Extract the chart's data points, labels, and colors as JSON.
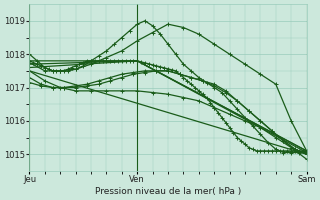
{
  "xlabel": "Pression niveau de la mer( hPa )",
  "ylim": [
    1014.5,
    1019.5
  ],
  "yticks": [
    1015,
    1016,
    1017,
    1018,
    1019
  ],
  "bg_color": "#cce8dc",
  "grid_color": "#99ccbb",
  "line_color": "#1a5c1a",
  "vline_color": "#1a5c1a",
  "markersize": 2.2,
  "linewidth": 0.9,
  "n_total": 73,
  "jeu_x": 0,
  "ven_x": 28,
  "sam_x": 72,
  "xtick_positions": [
    0,
    28,
    72
  ],
  "xtick_labels": [
    "Jeu",
    "Ven",
    "Sam"
  ],
  "series": [
    {
      "x": [
        0,
        1,
        2,
        3,
        4,
        5,
        6,
        7,
        8,
        9,
        10,
        11,
        12,
        13,
        14,
        15,
        16,
        17,
        18,
        19,
        20,
        21,
        22,
        23,
        24,
        25,
        26,
        27,
        28,
        29,
        30,
        31,
        32,
        33,
        34,
        35,
        36,
        37,
        38,
        39,
        40,
        41,
        42,
        43,
        44,
        45,
        46,
        47,
        48,
        49,
        50,
        51,
        52,
        53,
        54,
        55,
        56,
        57,
        58,
        59,
        60,
        61,
        62,
        63,
        64,
        65,
        66,
        67,
        68,
        69,
        70,
        71,
        72
      ],
      "y": [
        1017.8,
        1017.75,
        1017.7,
        1017.65,
        1017.6,
        1017.55,
        1017.5,
        1017.5,
        1017.5,
        1017.5,
        1017.55,
        1017.6,
        1017.65,
        1017.7,
        1017.75,
        1017.8,
        1017.8,
        1017.8,
        1017.8,
        1017.8,
        1017.8,
        1017.8,
        1017.8,
        1017.8,
        1017.8,
        1017.8,
        1017.8,
        1017.8,
        1017.8,
        1017.77,
        1017.74,
        1017.71,
        1017.68,
        1017.65,
        1017.62,
        1017.59,
        1017.56,
        1017.53,
        1017.5,
        1017.4,
        1017.3,
        1017.2,
        1017.1,
        1017.0,
        1016.9,
        1016.8,
        1016.7,
        1016.55,
        1016.4,
        1016.25,
        1016.1,
        1015.95,
        1015.8,
        1015.65,
        1015.5,
        1015.4,
        1015.3,
        1015.2,
        1015.15,
        1015.1,
        1015.1,
        1015.1,
        1015.1,
        1015.1,
        1015.1,
        1015.1,
        1015.1,
        1015.1,
        1015.1,
        1015.1,
        1015.1,
        1015.1,
        1015.1
      ],
      "has_markers": true
    },
    {
      "x": [
        0,
        4,
        8,
        12,
        16,
        20,
        24,
        28,
        32,
        36,
        40,
        44,
        48,
        52,
        56,
        60,
        64,
        68,
        72
      ],
      "y": [
        1017.75,
        1017.5,
        1017.5,
        1017.55,
        1017.7,
        1017.9,
        1018.1,
        1018.4,
        1018.65,
        1018.9,
        1018.8,
        1018.6,
        1018.3,
        1018.0,
        1017.7,
        1017.4,
        1017.1,
        1016.0,
        1015.1
      ],
      "has_markers": true
    },
    {
      "x": [
        0,
        28,
        72
      ],
      "y": [
        1017.8,
        1017.8,
        1015.1
      ],
      "has_markers": false
    },
    {
      "x": [
        0,
        28,
        72
      ],
      "y": [
        1017.7,
        1017.8,
        1015.1
      ],
      "has_markers": false
    },
    {
      "x": [
        0,
        28,
        72
      ],
      "y": [
        1017.6,
        1017.8,
        1015.05
      ],
      "has_markers": false
    },
    {
      "x": [
        0,
        72
      ],
      "y": [
        1017.5,
        1015.0
      ],
      "has_markers": false
    },
    {
      "x": [
        0,
        2,
        4,
        6,
        8,
        10,
        12,
        14,
        16,
        18,
        20,
        22,
        24,
        26,
        28,
        30,
        32,
        34,
        36,
        38,
        40,
        42,
        44,
        46,
        48,
        50,
        52,
        54,
        56,
        58,
        60,
        62,
        64,
        66,
        68,
        70,
        72
      ],
      "y": [
        1018.0,
        1017.8,
        1017.6,
        1017.5,
        1017.5,
        1017.5,
        1017.55,
        1017.65,
        1017.8,
        1017.95,
        1018.1,
        1018.3,
        1018.5,
        1018.7,
        1018.9,
        1019.0,
        1018.85,
        1018.6,
        1018.3,
        1018.0,
        1017.7,
        1017.5,
        1017.3,
        1017.15,
        1017.0,
        1016.85,
        1016.6,
        1016.35,
        1016.1,
        1015.85,
        1015.6,
        1015.35,
        1015.15,
        1015.05,
        1015.05,
        1015.05,
        1015.05
      ],
      "has_markers": true
    },
    {
      "x": [
        0,
        3,
        6,
        9,
        12,
        15,
        18,
        21,
        24,
        27,
        30,
        33,
        36,
        39,
        42,
        45,
        48,
        51,
        54,
        57,
        60,
        63,
        66,
        69,
        72
      ],
      "y": [
        1017.3,
        1017.1,
        1017.0,
        1017.0,
        1017.05,
        1017.1,
        1017.2,
        1017.3,
        1017.4,
        1017.45,
        1017.5,
        1017.5,
        1017.5,
        1017.4,
        1017.3,
        1017.2,
        1017.1,
        1016.9,
        1016.6,
        1016.3,
        1016.0,
        1015.7,
        1015.4,
        1015.15,
        1015.0
      ],
      "has_markers": true
    },
    {
      "x": [
        0,
        3,
        6,
        9,
        12,
        15,
        18,
        21,
        24,
        27,
        30,
        33,
        36,
        39,
        42,
        45,
        48,
        51,
        54,
        57,
        60,
        63,
        66,
        69,
        72
      ],
      "y": [
        1017.15,
        1017.05,
        1017.0,
        1017.0,
        1017.0,
        1017.05,
        1017.1,
        1017.2,
        1017.3,
        1017.4,
        1017.45,
        1017.5,
        1017.5,
        1017.4,
        1017.3,
        1017.2,
        1017.05,
        1016.85,
        1016.6,
        1016.3,
        1016.0,
        1015.7,
        1015.4,
        1015.15,
        1015.0
      ],
      "has_markers": true
    },
    {
      "x": [
        0,
        4,
        8,
        12,
        16,
        20,
        24,
        28,
        32,
        36,
        40,
        44,
        48,
        52,
        56,
        60,
        64,
        68,
        72
      ],
      "y": [
        1017.5,
        1017.2,
        1017.0,
        1016.9,
        1016.9,
        1016.9,
        1016.9,
        1016.9,
        1016.85,
        1016.8,
        1016.7,
        1016.6,
        1016.4,
        1016.2,
        1016.0,
        1015.8,
        1015.5,
        1015.2,
        1014.85
      ],
      "has_markers": true
    }
  ]
}
